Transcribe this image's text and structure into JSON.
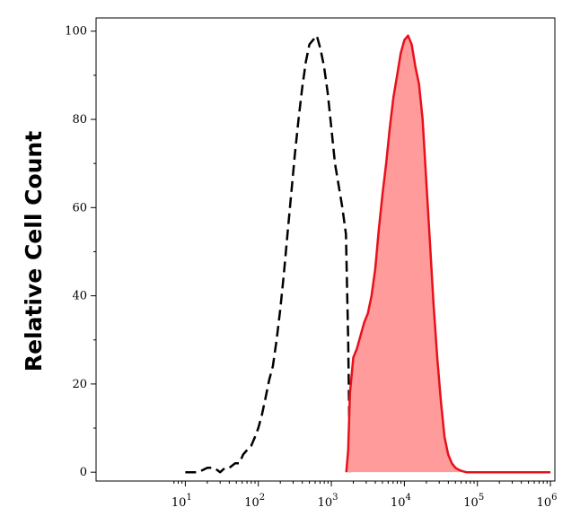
{
  "chart_data": {
    "type": "area",
    "title": "",
    "xlabel": "",
    "ylabel": "Relative Cell Count",
    "x_scale": "log",
    "xlim": [
      0.6,
      1150000
    ],
    "ylim": [
      -2,
      103
    ],
    "x_ticks": [
      {
        "base": "10",
        "exp": "1",
        "value": 10
      },
      {
        "base": "10",
        "exp": "2",
        "value": 100
      },
      {
        "base": "10",
        "exp": "3",
        "value": 1000
      },
      {
        "base": "10",
        "exp": "4",
        "value": 10000
      },
      {
        "base": "10",
        "exp": "5",
        "value": 100000
      },
      {
        "base": "10",
        "exp": "6",
        "value": 1000000
      }
    ],
    "y_ticks": [
      {
        "label": "0",
        "value": 0
      },
      {
        "label": "20",
        "value": 20
      },
      {
        "label": "40",
        "value": 40
      },
      {
        "label": "60",
        "value": 60
      },
      {
        "label": "80",
        "value": 80
      },
      {
        "label": "100",
        "value": 100
      }
    ],
    "grid": false,
    "legend": "none",
    "series": [
      {
        "style": "dashed",
        "color": "#000000",
        "fill": "none",
        "x": [
          10,
          15,
          20,
          25,
          30,
          35,
          40,
          48,
          55,
          62,
          70,
          80,
          90,
          100,
          112,
          126,
          141,
          158,
          178,
          200,
          224,
          251,
          282,
          316,
          355,
          398,
          447,
          501,
          562,
          631,
          708,
          794,
          891,
          1000,
          1122,
          1259,
          1413,
          1585,
          1700,
          1800
        ],
        "y": [
          0,
          0,
          1,
          1,
          0,
          1,
          1,
          2,
          2,
          4,
          5,
          6,
          8,
          10,
          13,
          17,
          21,
          24,
          30,
          37,
          45,
          54,
          63,
          72,
          80,
          87,
          93,
          97,
          98,
          99,
          96,
          92,
          86,
          78,
          70,
          65,
          60,
          54,
          30,
          0
        ]
      },
      {
        "style": "solid",
        "color": "#e8101a",
        "fill": "#ff9b9b",
        "x": [
          1600,
          1700,
          1800,
          2000,
          2239,
          2512,
          2818,
          3162,
          3548,
          3981,
          4467,
          5012,
          5623,
          6310,
          7079,
          7943,
          8913,
          10000,
          11220,
          12589,
          14125,
          15849,
          17783,
          19953,
          22387,
          25119,
          28184,
          31623,
          35481,
          39811,
          44668,
          50119,
          56234,
          63096,
          70795,
          100000,
          1000000
        ],
        "y": [
          0,
          5,
          18,
          26,
          28,
          31,
          34,
          36,
          40,
          46,
          55,
          63,
          70,
          78,
          85,
          90,
          95,
          98,
          99,
          97,
          92,
          88,
          80,
          66,
          52,
          38,
          26,
          16,
          8,
          4,
          2,
          1,
          0.5,
          0.2,
          0,
          0,
          0
        ]
      }
    ]
  }
}
